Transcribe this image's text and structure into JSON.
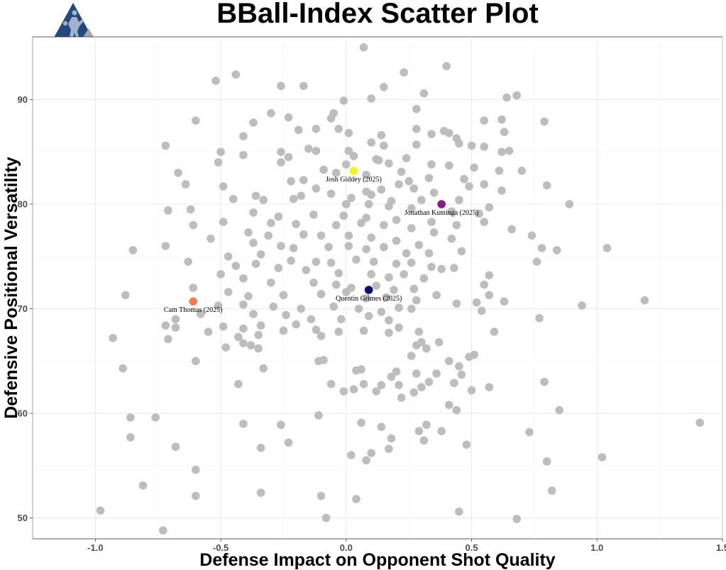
{
  "chart_data": {
    "type": "scatter",
    "title": "BBall-Index Scatter Plot",
    "xlabel": "Defense Impact on Opponent Shot Quality",
    "ylabel": "Defensive Positional Versatility",
    "xlim": [
      -1.25,
      1.5
    ],
    "ylim": [
      48,
      96
    ],
    "x_ticks": [
      -1.0,
      -0.5,
      0.0,
      0.5,
      1.0,
      1.5
    ],
    "x_tick_labels": [
      "-1.0",
      "-0.5",
      "0.0",
      "0.5",
      "1.0",
      "1.5"
    ],
    "y_ticks": [
      50,
      60,
      70,
      80,
      90
    ],
    "y_tick_labels": [
      "50",
      "60",
      "70",
      "80",
      "90"
    ],
    "grid": true,
    "point_color": "#bdbdbd",
    "highlights": [
      {
        "label": "Josh Giddey (2025)",
        "x": 0.03,
        "y": 83.2,
        "color": "#f5f51a"
      },
      {
        "label": "Jonathan Kuminga (2025)",
        "x": 0.38,
        "y": 80.0,
        "color": "#8b1a89"
      },
      {
        "label": "Quentin Grimes (2025)",
        "x": 0.09,
        "y": 71.8,
        "color": "#0b0b6e"
      },
      {
        "label": "Cam Thomas (2025)",
        "x": -0.61,
        "y": 70.7,
        "color": "#f07b4f"
      }
    ],
    "points": [
      [
        0.07,
        95.0
      ],
      [
        0.4,
        93.2
      ],
      [
        -0.44,
        92.4
      ],
      [
        0.23,
        92.6
      ],
      [
        -0.52,
        91.8
      ],
      [
        -0.26,
        91.3
      ],
      [
        -0.17,
        91.3
      ],
      [
        0.15,
        91.2
      ],
      [
        -0.01,
        89.9
      ],
      [
        0.31,
        90.6
      ],
      [
        0.1,
        90.1
      ],
      [
        0.64,
        90.2
      ],
      [
        0.68,
        90.4
      ],
      [
        -0.3,
        88.7
      ],
      [
        0.28,
        89.1
      ],
      [
        -0.23,
        88.3
      ],
      [
        -0.06,
        88.2
      ],
      [
        -0.6,
        88.0
      ],
      [
        -0.37,
        87.8
      ],
      [
        -0.05,
        88.7
      ],
      [
        0.55,
        88.0
      ],
      [
        0.62,
        88.1
      ],
      [
        0.79,
        87.9
      ],
      [
        -0.19,
        87.1
      ],
      [
        -0.12,
        87.2
      ],
      [
        -0.03,
        87.2
      ],
      [
        0.01,
        86.8
      ],
      [
        0.14,
        86.6
      ],
      [
        0.28,
        87.2
      ],
      [
        0.41,
        86.8
      ],
      [
        0.44,
        86.3
      ],
      [
        0.39,
        87.0
      ],
      [
        0.45,
        85.8
      ],
      [
        -0.41,
        86.5
      ],
      [
        0.34,
        86.7
      ],
      [
        0.63,
        86.9
      ],
      [
        -0.72,
        85.6
      ],
      [
        -0.5,
        85.0
      ],
      [
        -0.26,
        85.0
      ],
      [
        -0.15,
        85.3
      ],
      [
        0.1,
        85.9
      ],
      [
        0.15,
        85.6
      ],
      [
        0.28,
        85.7
      ],
      [
        0.5,
        85.6
      ],
      [
        0.55,
        85.5
      ],
      [
        0.65,
        85.1
      ],
      [
        0.01,
        85.1
      ],
      [
        -0.41,
        84.7
      ],
      [
        -0.23,
        84.5
      ],
      [
        -0.12,
        85.1
      ],
      [
        0.03,
        84.6
      ],
      [
        0.12,
        84.3
      ],
      [
        0.24,
        84.4
      ],
      [
        0.34,
        83.8
      ],
      [
        0.62,
        85.0
      ],
      [
        -0.51,
        84.0
      ],
      [
        -0.26,
        84.0
      ],
      [
        -0.09,
        83.3
      ],
      [
        0.0,
        83.8
      ],
      [
        0.13,
        84.2
      ],
      [
        0.17,
        83.9
      ],
      [
        0.22,
        83.1
      ],
      [
        0.41,
        83.7
      ],
      [
        0.51,
        83.5
      ],
      [
        0.61,
        83.2
      ],
      [
        0.7,
        83.2
      ],
      [
        -0.67,
        83.0
      ],
      [
        -0.17,
        82.3
      ],
      [
        -0.04,
        83.0
      ],
      [
        0.08,
        82.8
      ],
      [
        0.25,
        82.2
      ],
      [
        0.33,
        82.5
      ],
      [
        0.47,
        82.4
      ],
      [
        -0.64,
        81.9
      ],
      [
        -0.49,
        81.7
      ],
      [
        -0.22,
        82.2
      ],
      [
        -0.12,
        81.5
      ],
      [
        0.08,
        81.2
      ],
      [
        0.14,
        81.4
      ],
      [
        0.21,
        81.9
      ],
      [
        0.27,
        81.5
      ],
      [
        0.49,
        81.7
      ],
      [
        0.55,
        81.9
      ],
      [
        0.62,
        81.3
      ],
      [
        0.8,
        81.8
      ],
      [
        -0.36,
        80.8
      ],
      [
        -0.18,
        80.8
      ],
      [
        -0.06,
        81.0
      ],
      [
        0.02,
        80.6
      ],
      [
        0.1,
        80.9
      ],
      [
        0.18,
        80.3
      ],
      [
        0.3,
        80.4
      ],
      [
        0.35,
        81.1
      ],
      [
        0.45,
        80.4
      ],
      [
        0.57,
        79.7
      ],
      [
        -0.45,
        80.5
      ],
      [
        -0.33,
        80.4
      ],
      [
        -0.21,
        80.5
      ],
      [
        0.0,
        80.0
      ],
      [
        0.09,
        80.0
      ],
      [
        0.17,
        79.8
      ],
      [
        0.26,
        79.6
      ],
      [
        0.42,
        79.3
      ],
      [
        0.53,
        79.1
      ],
      [
        0.89,
        80.0
      ],
      [
        -0.71,
        79.4
      ],
      [
        -0.62,
        79.5
      ],
      [
        -0.37,
        79.2
      ],
      [
        -0.27,
        78.8
      ],
      [
        -0.13,
        79.0
      ],
      [
        -0.01,
        78.9
      ],
      [
        0.08,
        78.7
      ],
      [
        0.2,
        78.5
      ],
      [
        0.34,
        78.3
      ],
      [
        0.44,
        78.0
      ],
      [
        0.55,
        78.3
      ],
      [
        -0.49,
        78.3
      ],
      [
        -0.3,
        78.2
      ],
      [
        -0.2,
        78.1
      ],
      [
        -0.04,
        78.0
      ],
      [
        0.06,
        78.2
      ],
      [
        0.15,
        78.0
      ],
      [
        0.26,
        77.7
      ],
      [
        0.35,
        77.3
      ],
      [
        -0.61,
        78.0
      ],
      [
        -0.39,
        77.3
      ],
      [
        -0.31,
        77.0
      ],
      [
        -0.17,
        77.1
      ],
      [
        -0.1,
        77.0
      ],
      [
        0.01,
        77.0
      ],
      [
        0.1,
        76.8
      ],
      [
        0.2,
        76.5
      ],
      [
        0.29,
        76.1
      ],
      [
        0.42,
        76.7
      ],
      [
        0.66,
        77.6
      ],
      [
        0.74,
        77.0
      ],
      [
        -0.72,
        76.0
      ],
      [
        -0.54,
        76.7
      ],
      [
        -0.37,
        76.3
      ],
      [
        -0.26,
        76.0
      ],
      [
        -0.21,
        75.8
      ],
      [
        -0.07,
        75.9
      ],
      [
        0.01,
        76.0
      ],
      [
        0.08,
        75.7
      ],
      [
        0.15,
        75.9
      ],
      [
        0.24,
        75.3
      ],
      [
        0.33,
        75.3
      ],
      [
        0.46,
        75.5
      ],
      [
        0.78,
        75.8
      ],
      [
        0.84,
        75.6
      ],
      [
        -0.85,
        75.6
      ],
      [
        -0.47,
        75.0
      ],
      [
        -0.34,
        75.2
      ],
      [
        -0.22,
        74.6
      ],
      [
        -0.12,
        74.5
      ],
      [
        -0.06,
        74.4
      ],
      [
        0.04,
        74.7
      ],
      [
        0.11,
        74.5
      ],
      [
        0.2,
        74.3
      ],
      [
        0.26,
        74.4
      ],
      [
        0.34,
        74.0
      ],
      [
        0.43,
        73.9
      ],
      [
        0.76,
        74.5
      ],
      [
        1.04,
        75.8
      ],
      [
        -0.63,
        74.5
      ],
      [
        -0.44,
        74.1
      ],
      [
        -0.36,
        74.3
      ],
      [
        -0.27,
        73.9
      ],
      [
        -0.16,
        73.7
      ],
      [
        -0.03,
        73.4
      ],
      [
        0.1,
        73.3
      ],
      [
        0.17,
        73.0
      ],
      [
        0.23,
        73.3
      ],
      [
        0.31,
        72.9
      ],
      [
        0.38,
        73.8
      ],
      [
        0.57,
        73.2
      ],
      [
        -0.5,
        73.3
      ],
      [
        -0.41,
        72.9
      ],
      [
        -0.3,
        72.5
      ],
      [
        -0.13,
        72.5
      ],
      [
        -0.04,
        72.3
      ],
      [
        0.02,
        72.0
      ],
      [
        0.12,
        72.2
      ],
      [
        0.19,
        71.8
      ],
      [
        0.27,
        71.9
      ],
      [
        0.36,
        71.3
      ],
      [
        0.55,
        72.3
      ],
      [
        -0.61,
        72.0
      ],
      [
        -0.47,
        71.6
      ],
      [
        -0.39,
        71.2
      ],
      [
        -0.25,
        71.3
      ],
      [
        -0.1,
        71.4
      ],
      [
        0.0,
        71.6
      ],
      [
        0.08,
        71.0
      ],
      [
        0.16,
        71.1
      ],
      [
        0.28,
        70.8
      ],
      [
        0.44,
        70.5
      ],
      [
        0.52,
        70.6
      ],
      [
        0.57,
        71.3
      ],
      [
        0.63,
        70.7
      ],
      [
        0.94,
        70.3
      ],
      [
        1.19,
        70.8
      ],
      [
        -0.88,
        71.3
      ],
      [
        -0.51,
        70.3
      ],
      [
        -0.41,
        70.4
      ],
      [
        -0.29,
        70.2
      ],
      [
        -0.18,
        70.0
      ],
      [
        -0.05,
        70.2
      ],
      [
        0.05,
        70.0
      ],
      [
        0.14,
        69.7
      ],
      [
        0.21,
        70.1
      ],
      [
        0.26,
        70.0
      ],
      [
        0.54,
        69.8
      ],
      [
        -0.58,
        69.5
      ],
      [
        -0.37,
        69.5
      ],
      [
        -0.24,
        69.4
      ],
      [
        -0.14,
        69.0
      ],
      [
        -0.02,
        69.0
      ],
      [
        0.09,
        69.3
      ],
      [
        0.17,
        68.9
      ],
      [
        0.21,
        68.2
      ],
      [
        0.59,
        67.8
      ],
      [
        0.77,
        69.1
      ],
      [
        -0.72,
        68.4
      ],
      [
        -0.68,
        69.0
      ],
      [
        -0.49,
        68.3
      ],
      [
        -0.41,
        68.1
      ],
      [
        -0.34,
        68.4
      ],
      [
        -0.2,
        68.5
      ],
      [
        -0.12,
        68.0
      ],
      [
        -0.03,
        67.8
      ],
      [
        0.07,
        67.9
      ],
      [
        0.17,
        67.7
      ],
      [
        0.29,
        67.8
      ],
      [
        -0.93,
        67.2
      ],
      [
        -0.68,
        68.2
      ],
      [
        -0.55,
        67.8
      ],
      [
        -0.43,
        67.3
      ],
      [
        -0.35,
        67.5
      ],
      [
        -0.25,
        67.9
      ],
      [
        -0.1,
        67.4
      ],
      [
        -0.71,
        67.1
      ],
      [
        -0.38,
        66.5
      ],
      [
        -0.41,
        66.7
      ],
      [
        0.28,
        66.5
      ],
      [
        0.3,
        66.8
      ],
      [
        0.37,
        66.8
      ],
      [
        -0.48,
        66.3
      ],
      [
        -0.35,
        66.2
      ],
      [
        0.51,
        65.6
      ],
      [
        0.32,
        66.2
      ],
      [
        -0.09,
        65.1
      ],
      [
        -0.6,
        65.0
      ],
      [
        -0.11,
        65.0
      ],
      [
        0.26,
        65.5
      ],
      [
        0.41,
        65.0
      ],
      [
        0.45,
        64.5
      ],
      [
        0.49,
        65.4
      ],
      [
        -0.89,
        64.3
      ],
      [
        -0.33,
        64.3
      ],
      [
        0.04,
        64.1
      ],
      [
        0.06,
        64.2
      ],
      [
        0.2,
        64.0
      ],
      [
        0.18,
        63.5
      ],
      [
        0.28,
        63.8
      ],
      [
        0.36,
        63.8
      ],
      [
        0.46,
        63.7
      ],
      [
        -0.06,
        62.8
      ],
      [
        0.03,
        62.3
      ],
      [
        0.07,
        62.8
      ],
      [
        0.14,
        62.7
      ],
      [
        0.21,
        62.7
      ],
      [
        0.3,
        62.5
      ],
      [
        0.33,
        63.0
      ],
      [
        0.43,
        62.9
      ],
      [
        0.5,
        62.2
      ],
      [
        -0.43,
        62.8
      ],
      [
        -0.01,
        62.1
      ],
      [
        0.12,
        62.1
      ],
      [
        0.27,
        62.0
      ],
      [
        0.57,
        62.5
      ],
      [
        0.79,
        63.0
      ],
      [
        0.22,
        61.5
      ],
      [
        0.41,
        60.8
      ],
      [
        0.44,
        60.3
      ],
      [
        0.85,
        60.3
      ],
      [
        -0.86,
        59.6
      ],
      [
        -0.76,
        59.6
      ],
      [
        -0.41,
        59.0
      ],
      [
        -0.26,
        58.9
      ],
      [
        -0.11,
        59.8
      ],
      [
        0.06,
        59.1
      ],
      [
        0.14,
        58.7
      ],
      [
        0.18,
        57.6
      ],
      [
        0.29,
        58.3
      ],
      [
        0.32,
        58.9
      ],
      [
        0.38,
        58.3
      ],
      [
        1.41,
        59.1
      ],
      [
        -0.86,
        57.7
      ],
      [
        -0.68,
        56.8
      ],
      [
        -0.34,
        56.7
      ],
      [
        -0.23,
        57.2
      ],
      [
        0.02,
        56.0
      ],
      [
        0.1,
        56.2
      ],
      [
        0.17,
        56.6
      ],
      [
        0.31,
        57.4
      ],
      [
        0.48,
        57.0
      ],
      [
        0.73,
        58.2
      ],
      [
        0.8,
        55.4
      ],
      [
        1.02,
        55.8
      ],
      [
        0.08,
        55.5
      ],
      [
        -0.6,
        54.6
      ],
      [
        -0.81,
        53.1
      ],
      [
        -0.34,
        52.4
      ],
      [
        -0.1,
        52.1
      ],
      [
        -0.6,
        52.1
      ],
      [
        0.04,
        51.8
      ],
      [
        0.45,
        50.6
      ],
      [
        0.82,
        52.6
      ],
      [
        -0.98,
        50.7
      ],
      [
        -0.73,
        48.8
      ],
      [
        -0.08,
        50.0
      ],
      [
        0.68,
        49.9
      ]
    ]
  }
}
